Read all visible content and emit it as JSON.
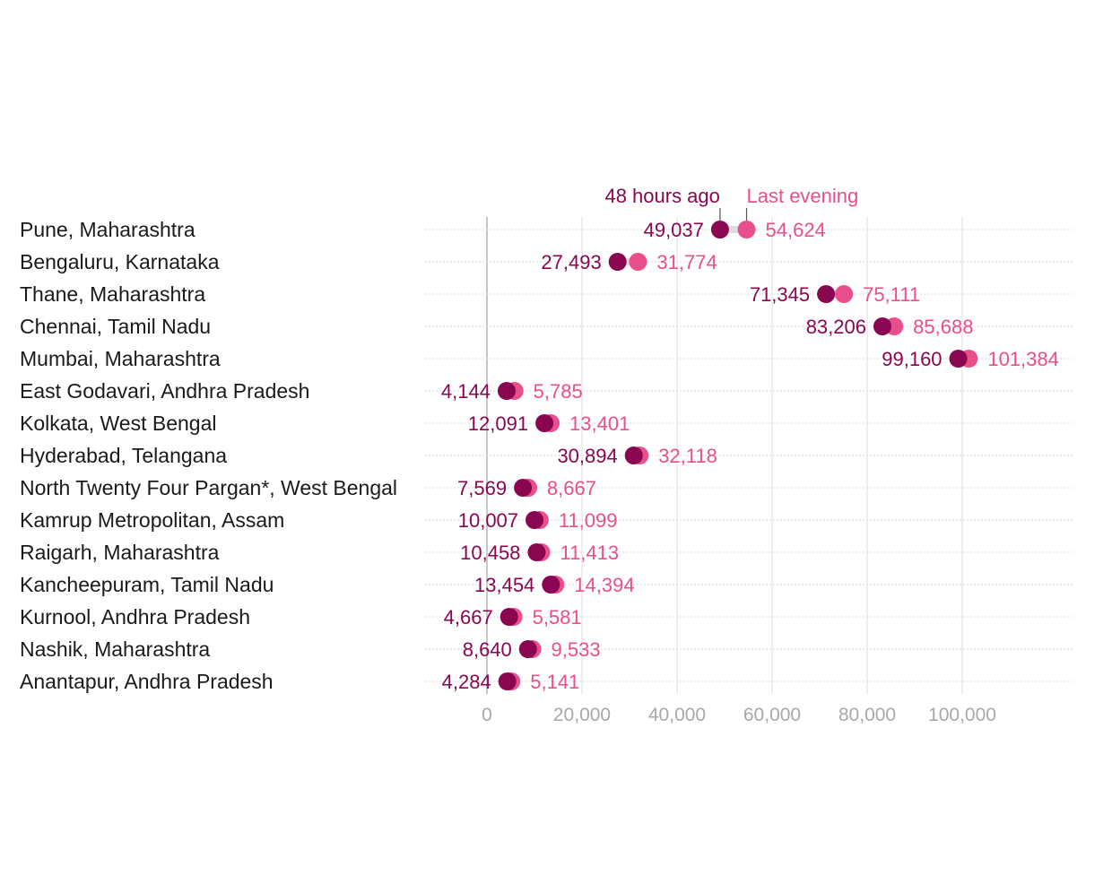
{
  "chart_data": {
    "type": "dot-plot",
    "legend": {
      "before_label": "48 hours ago",
      "after_label": "Last evening",
      "placement": "top, above first row"
    },
    "colors": {
      "before": "#8a0651",
      "after": "#e94f8a",
      "connector": "#dddddd",
      "grid": "#e3e3e3",
      "zero_line": "#bbbbbb",
      "row_guide": "#d9d9d9"
    },
    "x_axis": {
      "ticks": [
        0,
        20000,
        40000,
        60000,
        80000,
        100000
      ],
      "tick_labels": [
        "0",
        "20,000",
        "40,000",
        "60,000",
        "80,000",
        "100,000"
      ],
      "xlim": [
        -13000,
        124000
      ]
    },
    "rows": [
      {
        "label": "Pune, Maharashtra",
        "before": 49037,
        "before_label": "49,037",
        "after": 54624,
        "after_label": "54,624"
      },
      {
        "label": "Bengaluru, Karnataka",
        "before": 27493,
        "before_label": "27,493",
        "after": 31774,
        "after_label": "31,774"
      },
      {
        "label": "Thane, Maharashtra",
        "before": 71345,
        "before_label": "71,345",
        "after": 75111,
        "after_label": "75,111"
      },
      {
        "label": "Chennai, Tamil Nadu",
        "before": 83206,
        "before_label": "83,206",
        "after": 85688,
        "after_label": "85,688"
      },
      {
        "label": "Mumbai, Maharashtra",
        "before": 99160,
        "before_label": "99,160",
        "after": 101384,
        "after_label": "101,384"
      },
      {
        "label": "East Godavari, Andhra Pradesh",
        "before": 4144,
        "before_label": "4,144",
        "after": 5785,
        "after_label": "5,785"
      },
      {
        "label": "Kolkata, West Bengal",
        "before": 12091,
        "before_label": "12,091",
        "after": 13401,
        "after_label": "13,401"
      },
      {
        "label": "Hyderabad, Telangana",
        "before": 30894,
        "before_label": "30,894",
        "after": 32118,
        "after_label": "32,118"
      },
      {
        "label": "North Twenty Four Pargan*, West Bengal",
        "before": 7569,
        "before_label": "7,569",
        "after": 8667,
        "after_label": "8,667"
      },
      {
        "label": "Kamrup Metropolitan, Assam",
        "before": 10007,
        "before_label": "10,007",
        "after": 11099,
        "after_label": "11,099"
      },
      {
        "label": "Raigarh, Maharashtra",
        "before": 10458,
        "before_label": "10,458",
        "after": 11413,
        "after_label": "11,413"
      },
      {
        "label": "Kancheepuram, Tamil Nadu",
        "before": 13454,
        "before_label": "13,454",
        "after": 14394,
        "after_label": "14,394"
      },
      {
        "label": "Kurnool, Andhra Pradesh",
        "before": 4667,
        "before_label": "4,667",
        "after": 5581,
        "after_label": "5,581"
      },
      {
        "label": "Nashik, Maharashtra",
        "before": 8640,
        "before_label": "8,640",
        "after": 9533,
        "after_label": "9,533"
      },
      {
        "label": "Anantapur, Andhra Pradesh",
        "before": 4284,
        "before_label": "4,284",
        "after": 5141,
        "after_label": "5,141"
      }
    ]
  }
}
